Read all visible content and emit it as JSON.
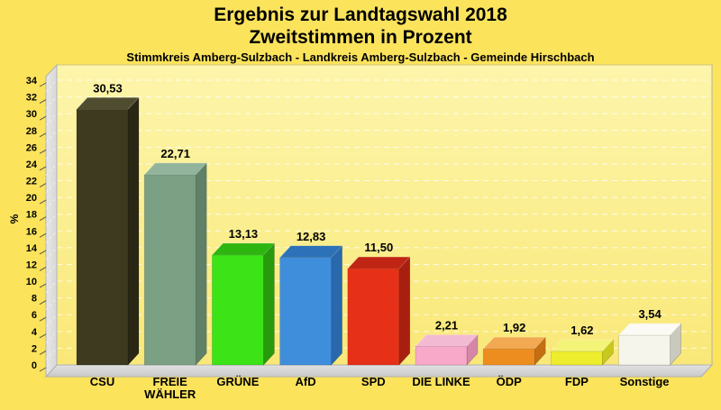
{
  "header": {
    "title": "Ergebnis zur Landtagswahl 2018",
    "subtitle": "Zweitstimmen in Prozent",
    "region_line": "Stimmkreis Amberg-Sulzbach - Landkreis Amberg-Sulzbach - Gemeinde Hirschbach"
  },
  "colors": {
    "page_bg": "#fbe35c",
    "plot_bg_top": "#fdf5ab",
    "plot_bg_bottom": "#f9e878",
    "plot_border": "#cfc77f",
    "wall_fill": "#d8d8d8",
    "wall_edge": "#b2b2b2",
    "floor_fill_light": "#e2e2e2",
    "floor_fill_dark": "#c9c9c9",
    "grid": "#ffffff",
    "text": "#000000"
  },
  "chart_data": {
    "type": "bar",
    "style": "3d-column",
    "title": "Ergebnis zur Landtagswahl 2018",
    "subtitle": "Zweitstimmen in Prozent",
    "annotation": "Stimmkreis Amberg-Sulzbach - Landkreis Amberg-Sulzbach - Gemeinde Hirschbach",
    "xlabel": "",
    "ylabel": "%",
    "ylim": [
      0,
      34
    ],
    "ytick_step": 2,
    "yticks": [
      0,
      2,
      4,
      6,
      8,
      10,
      12,
      14,
      16,
      18,
      20,
      22,
      24,
      26,
      28,
      30,
      32,
      34
    ],
    "grid": "dashed-horizontal",
    "legend_position": "none",
    "categories": [
      "CSU",
      "FREIE WÄHLER",
      "GRÜNE",
      "AfD",
      "SPD",
      "DIE LINKE",
      "ÖDP",
      "FDP",
      "Sonstige"
    ],
    "label_lines": [
      [
        "CSU"
      ],
      [
        "FREIE",
        "WÄHLER"
      ],
      [
        "GRÜNE"
      ],
      [
        "AfD"
      ],
      [
        "SPD"
      ],
      [
        "DIE LINKE"
      ],
      [
        "ÖDP"
      ],
      [
        "FDP"
      ],
      [
        "Sonstige"
      ]
    ],
    "values": [
      30.53,
      22.71,
      13.13,
      12.83,
      11.5,
      2.21,
      1.92,
      1.62,
      3.54
    ],
    "display_values": [
      "30,53",
      "22,71",
      "13,13",
      "12,83",
      "11,50",
      "2,21",
      "1,92",
      "1,62",
      "3,54"
    ],
    "bar_colors": [
      {
        "front": "#3e3a20",
        "top": "#504c30",
        "side": "#2a2814"
      },
      {
        "front": "#7ba084",
        "top": "#92b49d",
        "side": "#5e8168"
      },
      {
        "front": "#3ce317",
        "top": "#2eb510",
        "side": "#279a0e"
      },
      {
        "front": "#3e8edc",
        "top": "#2d72b8",
        "side": "#2868ab"
      },
      {
        "front": "#e73018",
        "top": "#c02513",
        "side": "#a81f10"
      },
      {
        "front": "#f8a8c8",
        "top": "#f3bad4",
        "side": "#d687a7"
      },
      {
        "front": "#ee8d1f",
        "top": "#f3a952",
        "side": "#c46e12"
      },
      {
        "front": "#eded2d",
        "top": "#f3f378",
        "side": "#c9c91c"
      },
      {
        "front": "#f6f5ec",
        "top": "#fbfaf4",
        "side": "#c9c9bd"
      }
    ]
  }
}
